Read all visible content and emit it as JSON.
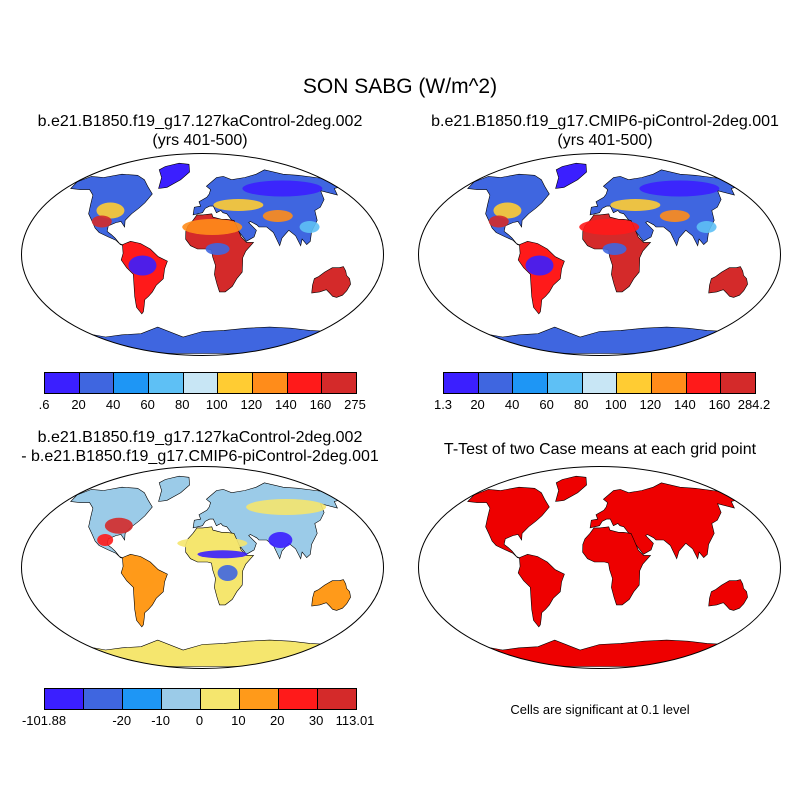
{
  "title": "SON SABG (W/m^2)",
  "panels": [
    {
      "title_line1": "b.e21.B1850.f19_g17.127kaControl-2deg.002",
      "title_line2": "(yrs 401-500)"
    },
    {
      "title_line1": "b.e21.B1850.f19_g17.CMIP6-piControl-2deg.001",
      "title_line2": "(yrs 401-500)"
    },
    {
      "title_line1": "b.e21.B1850.f19_g17.127kaControl-2deg.002",
      "title_line2": "- b.e21.B1850.f19_g17.CMIP6-piControl-2deg.001"
    },
    {
      "title_line1": "T-Test of two Case means at each grid point"
    }
  ],
  "colorbars": [
    {
      "colors": [
        "#3b1fff",
        "#3f66e0",
        "#1e96f5",
        "#5ec0f5",
        "#c8e6f5",
        "#ffcc33",
        "#ff8c1a",
        "#ff1a1a",
        "#d42a2a"
      ],
      "ticks": [
        ".6",
        "20",
        "40",
        "60",
        "80",
        "100",
        "120",
        "140",
        "160",
        "275"
      ]
    },
    {
      "colors": [
        "#3b1fff",
        "#3f66e0",
        "#1e96f5",
        "#5ec0f5",
        "#c8e6f5",
        "#ffcc33",
        "#ff8c1a",
        "#ff1a1a",
        "#d42a2a"
      ],
      "ticks": [
        "1.3",
        "20",
        "40",
        "60",
        "80",
        "100",
        "120",
        "140",
        "160",
        "284.2"
      ]
    },
    {
      "colors": [
        "#3b1fff",
        "#3f66e0",
        "#1e96f5",
        "#9bcbe8",
        "#f5e66e",
        "#ff9a1a",
        "#ff1a1a",
        "#d42a2a"
      ],
      "ticks": [
        "-101.88",
        "",
        "-20",
        "-10",
        "0",
        "10",
        "20",
        "30",
        "113.01"
      ]
    }
  ],
  "significance_note": "Cells are significant at 0.1 level",
  "colors": {
    "significant": "#ee0000",
    "ocean": "#ffffff",
    "coast": "#000000"
  }
}
